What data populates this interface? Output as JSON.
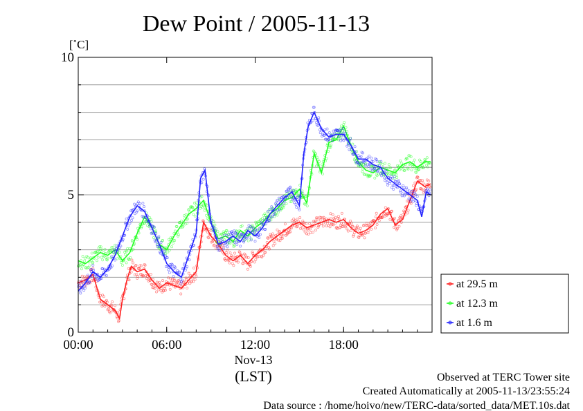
{
  "chart_data": {
    "type": "line",
    "title": "Dew Point / 2005-11-13",
    "unit": "[˚C]",
    "ylim": [
      0,
      10
    ],
    "y_ticks": [
      {
        "value": 0,
        "label": "0"
      },
      {
        "value": 5,
        "label": "5"
      },
      {
        "value": 10,
        "label": "10"
      }
    ],
    "y_gridlines": [
      1,
      2,
      3,
      4,
      5,
      6,
      7,
      8,
      9
    ],
    "xlim": [
      0,
      24
    ],
    "x_ticks": [
      {
        "value": 0,
        "label": "00:00"
      },
      {
        "value": 6,
        "label": "06:00"
      },
      {
        "value": 12,
        "label": "12:00"
      },
      {
        "value": 18,
        "label": "18:00"
      }
    ],
    "x_date_label": "Nov-13",
    "x_unit_label": "(LST)",
    "legend_position": "right-bottom",
    "series": [
      {
        "name": "at 29.5 m",
        "color": "#ff2020",
        "x": [
          0,
          0.5,
          1,
          1.5,
          2,
          2.5,
          2.8,
          3,
          3.3,
          3.6,
          4,
          4.5,
          5,
          5.5,
          6,
          6.5,
          7,
          7.5,
          8,
          8.5,
          9,
          9.5,
          10,
          10.5,
          11,
          11.5,
          12,
          12.5,
          13,
          13.5,
          14,
          14.5,
          15,
          15.5,
          16,
          16.5,
          17,
          17.5,
          18,
          18.5,
          19,
          19.5,
          20,
          20.5,
          21,
          21.5,
          22,
          22.5,
          23,
          23.5,
          23.9
        ],
        "y": [
          1.8,
          1.9,
          2.1,
          1.2,
          1.0,
          0.8,
          0.5,
          1.2,
          1.9,
          2.4,
          2.2,
          2.3,
          1.9,
          1.6,
          1.8,
          1.7,
          1.6,
          1.9,
          2.2,
          4.0,
          3.5,
          3.2,
          2.8,
          2.6,
          2.8,
          2.5,
          2.8,
          3.0,
          3.3,
          3.5,
          3.7,
          3.9,
          4.0,
          3.8,
          3.9,
          4.0,
          4.1,
          4.0,
          4.1,
          3.8,
          3.6,
          3.7,
          3.9,
          4.3,
          4.5,
          3.9,
          4.1,
          4.8,
          5.5,
          5.3,
          5.4
        ]
      },
      {
        "name": "at 12.3 m",
        "color": "#20ff20",
        "x": [
          0,
          0.5,
          1,
          1.5,
          2,
          2.5,
          3,
          3.5,
          4,
          4.5,
          5,
          5.5,
          6,
          6.5,
          7,
          7.5,
          8,
          8.5,
          9,
          9.5,
          10,
          10.5,
          11,
          11.5,
          12,
          12.5,
          13,
          13.5,
          14,
          14.5,
          15,
          15.5,
          16,
          16.5,
          17,
          17.5,
          18,
          18.5,
          19,
          19.5,
          20,
          20.5,
          21,
          21.5,
          22,
          22.5,
          23,
          23.5,
          23.9
        ],
        "y": [
          2.6,
          2.5,
          2.7,
          2.9,
          2.8,
          3.0,
          2.6,
          2.9,
          3.6,
          4.2,
          3.8,
          3.2,
          3.0,
          3.5,
          3.9,
          4.3,
          4.5,
          4.8,
          4.0,
          3.4,
          3.5,
          3.3,
          3.7,
          3.5,
          3.8,
          4.0,
          4.3,
          4.5,
          4.8,
          4.9,
          5.2,
          4.7,
          6.5,
          5.8,
          6.9,
          7.0,
          7.5,
          6.8,
          6.2,
          5.9,
          5.8,
          6.0,
          5.9,
          5.8,
          6.1,
          6.2,
          6.0,
          6.2,
          6.2
        ]
      },
      {
        "name": "at 1.6 m",
        "color": "#2020ff",
        "x": [
          0,
          0.5,
          1,
          1.5,
          2,
          2.5,
          3,
          3.5,
          4,
          4.5,
          5,
          5.5,
          6,
          6.5,
          7,
          7.5,
          8,
          8.3,
          8.6,
          9,
          9.5,
          10,
          10.5,
          11,
          11.5,
          12,
          12.5,
          13,
          13.5,
          14,
          14.5,
          15,
          15.3,
          15.6,
          16,
          16.5,
          17,
          17.5,
          18,
          18.5,
          19,
          19.5,
          20,
          20.5,
          21,
          21.5,
          22,
          22.5,
          23,
          23.3,
          23.6,
          23.9
        ],
        "y": [
          1.5,
          1.8,
          2.2,
          2.0,
          2.3,
          2.8,
          3.5,
          4.2,
          4.6,
          4.4,
          3.8,
          3.2,
          2.5,
          2.2,
          2.0,
          2.8,
          3.6,
          5.6,
          5.9,
          4.0,
          3.2,
          3.3,
          3.5,
          3.3,
          3.7,
          3.5,
          3.8,
          4.3,
          4.6,
          4.9,
          5.1,
          4.6,
          6.5,
          7.5,
          8.0,
          7.4,
          7.1,
          7.2,
          7.2,
          6.8,
          6.3,
          6.3,
          6.1,
          6.0,
          5.6,
          5.4,
          5.2,
          5.0,
          4.8,
          4.2,
          5.1,
          5.0
        ]
      }
    ]
  },
  "footer": {
    "site": "Observed at TERC Tower site",
    "created": "Created Automatically at 2005-11-13/23:55:24",
    "source": "Data source : /home/hoivo/new/TERC-data/sorted_data/MET.10s.dat"
  }
}
